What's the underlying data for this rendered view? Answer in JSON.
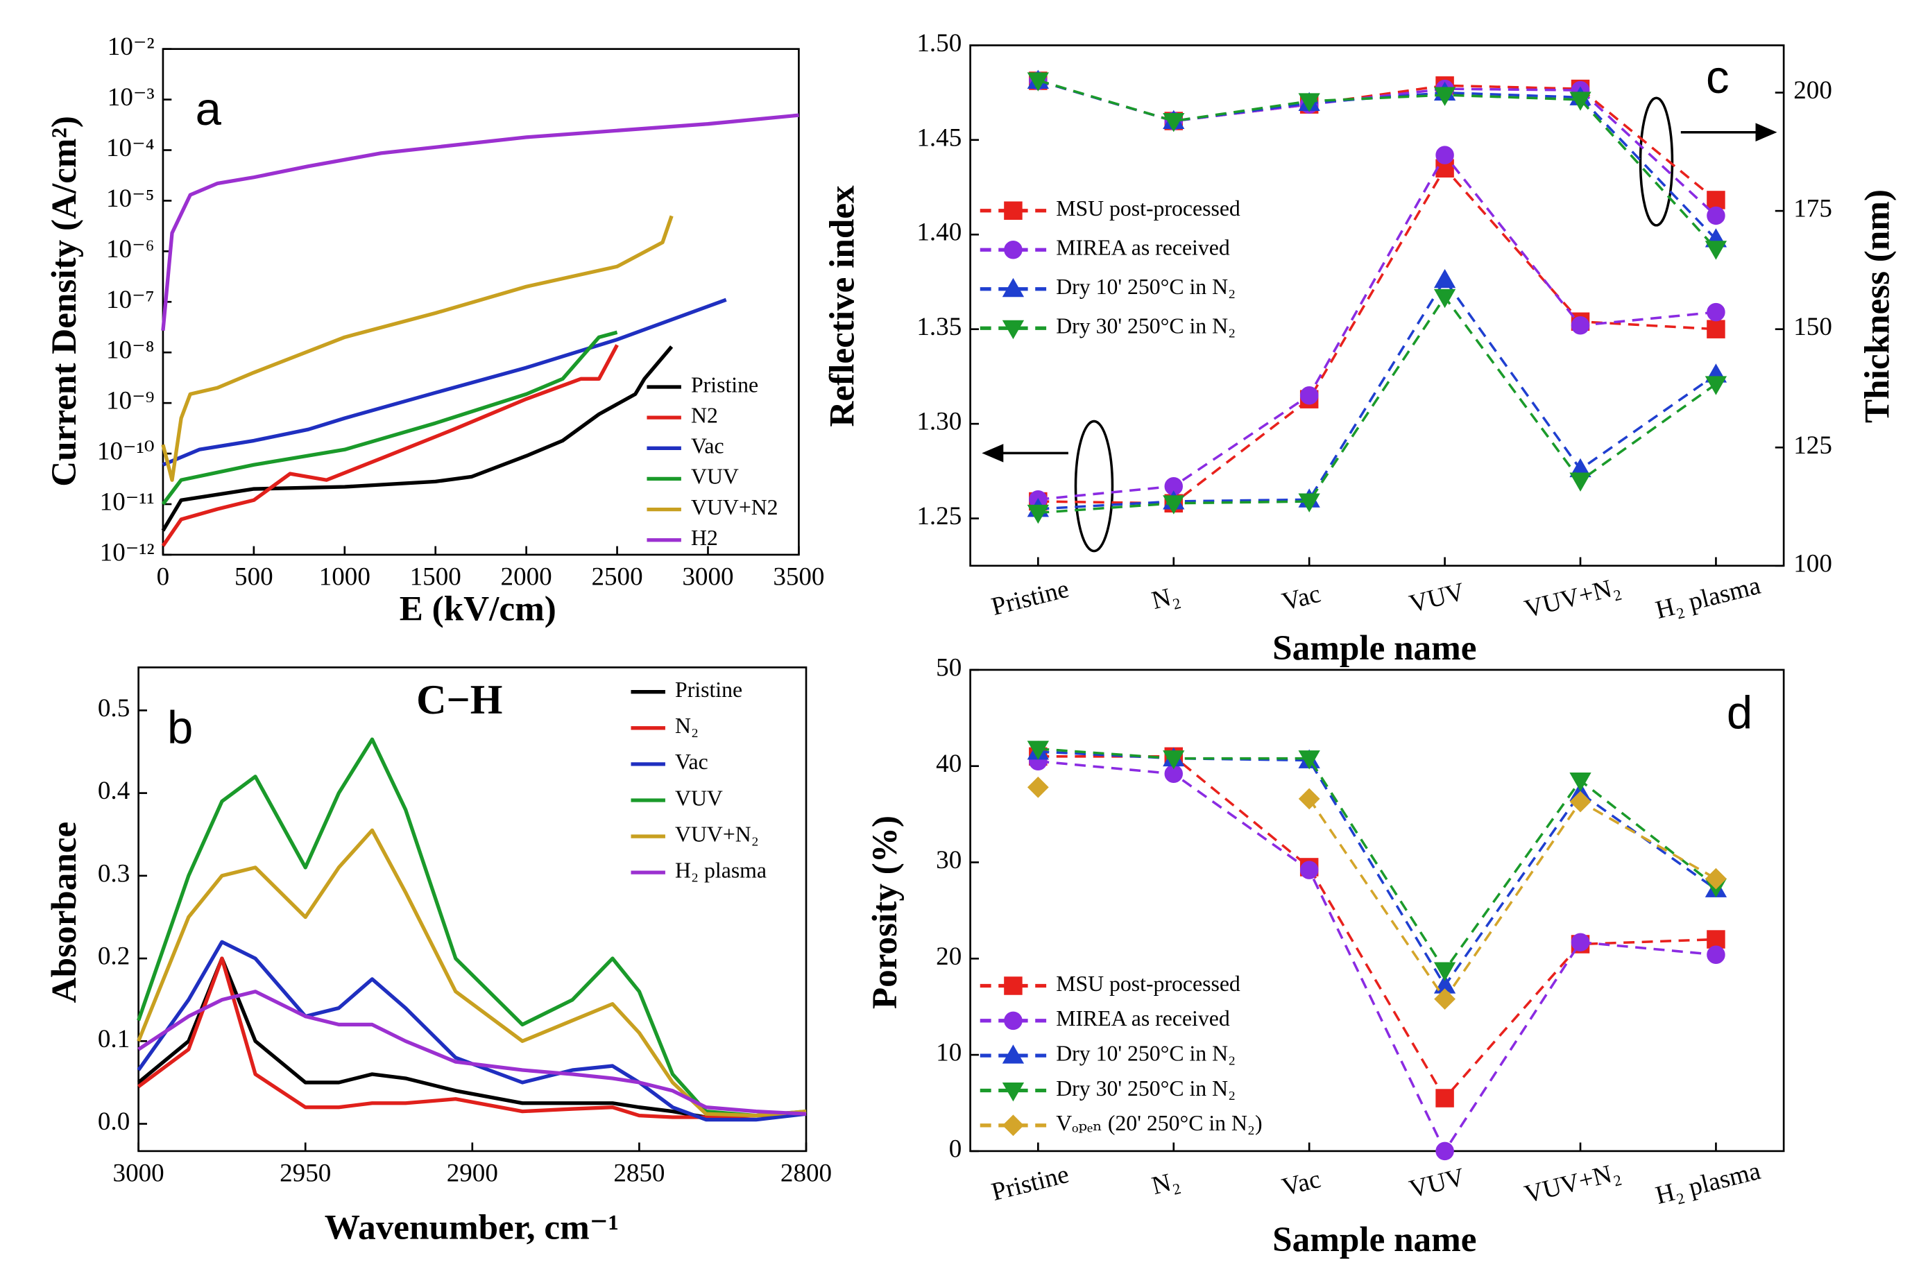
{
  "chart_data": [
    {
      "type": "line",
      "panel_label": "a",
      "x_label": "E (kV/cm)",
      "y_label": "Current Density (A/cm²)",
      "log_y": true,
      "xlim": [
        0,
        3500
      ],
      "xticks": [
        0,
        500,
        1000,
        1500,
        2000,
        2500,
        3000,
        3500
      ],
      "ylim": [
        1e-12,
        0.01
      ],
      "yticks": [
        {
          "value": 1e-12,
          "label": "10⁻¹²"
        },
        {
          "value": 1e-11,
          "label": "10⁻¹¹"
        },
        {
          "value": 1e-10,
          "label": "10⁻¹⁰"
        },
        {
          "value": 1e-09,
          "label": "10⁻⁹"
        },
        {
          "value": 1e-08,
          "label": "10⁻⁸"
        },
        {
          "value": 1e-07,
          "label": "10⁻⁷"
        },
        {
          "value": 1e-06,
          "label": "10⁻⁶"
        },
        {
          "value": 1e-05,
          "label": "10⁻⁵"
        },
        {
          "value": 0.0001,
          "label": "10⁻⁴"
        },
        {
          "value": 0.001,
          "label": "10⁻³"
        },
        {
          "value": 0.01,
          "label": "10⁻²"
        }
      ],
      "series": [
        {
          "name": "Pristine",
          "color": "#000000",
          "x": [
            0,
            100,
            500,
            1000,
            1500,
            1700,
            2000,
            2200,
            2400,
            2600,
            2650,
            2800
          ],
          "values": [
            3e-12,
            1.2e-11,
            2e-11,
            2.2e-11,
            2.8e-11,
            3.5e-11,
            9e-11,
            1.8e-10,
            6e-10,
            1.5e-09,
            3e-09,
            1.3e-08
          ]
        },
        {
          "name": "N2",
          "color": "#e0201b",
          "x": [
            0,
            100,
            300,
            500,
            700,
            900,
            1200,
            1600,
            2000,
            2300,
            2400,
            2500
          ],
          "values": [
            1.5e-12,
            5e-12,
            8e-12,
            1.2e-11,
            4e-11,
            3e-11,
            8e-11,
            3e-10,
            1.2e-09,
            3e-09,
            3e-09,
            1.4e-08
          ]
        },
        {
          "name": "Vac",
          "color": "#1f2fc0",
          "x": [
            0,
            200,
            500,
            800,
            1000,
            1500,
            2000,
            2500,
            3100
          ],
          "values": [
            6e-11,
            1.2e-10,
            1.8e-10,
            3e-10,
            5e-10,
            1.6e-09,
            5e-09,
            1.8e-08,
            1.1e-07
          ]
        },
        {
          "name": "VUV",
          "color": "#1a9a2a",
          "x": [
            0,
            100,
            500,
            1000,
            1500,
            2000,
            2200,
            2400,
            2500
          ],
          "values": [
            1e-11,
            3e-11,
            6e-11,
            1.2e-10,
            4e-10,
            1.5e-09,
            3e-09,
            2e-08,
            2.5e-08
          ]
        },
        {
          "name": "VUV+N2",
          "color": "#c8a020",
          "x": [
            0,
            50,
            100,
            150,
            300,
            500,
            1000,
            1500,
            2000,
            2500,
            2750,
            2800
          ],
          "values": [
            1.5e-10,
            3e-11,
            5e-10,
            1.5e-09,
            2e-09,
            4e-09,
            2e-08,
            6e-08,
            2e-07,
            5e-07,
            1.5e-06,
            5e-06
          ]
        },
        {
          "name": "H2",
          "color": "#9b30d0",
          "x": [
            0,
            50,
            150,
            300,
            500,
            800,
            1200,
            2000,
            3000,
            3500
          ],
          "values": [
            2.7e-08,
            2.3e-06,
            1.3e-05,
            2.2e-05,
            2.9e-05,
            4.8e-05,
            8.7e-05,
            0.00018,
            0.00033,
            0.00049
          ]
        }
      ]
    },
    {
      "type": "line",
      "panel_label": "b",
      "title": "C−H",
      "x_label": "Wavenumber, cm⁻¹",
      "y_label": "Absorbance",
      "xlim": [
        3000,
        2800
      ],
      "xticks": [
        3000,
        2950,
        2900,
        2850,
        2800
      ],
      "ylim": [
        -0.033,
        0.552
      ],
      "yticks": [
        {
          "value": 0,
          "label": "0.0"
        },
        0.1,
        0.2,
        0.3,
        0.4,
        0.5
      ],
      "x": [
        3000,
        2985,
        2975,
        2965,
        2950,
        2940,
        2930,
        2920,
        2905,
        2885,
        2870,
        2858,
        2850,
        2840,
        2830,
        2815,
        2800
      ],
      "series": [
        {
          "name": "Pristine",
          "color": "#000000",
          "values": [
            0.05,
            0.1,
            0.2,
            0.1,
            0.05,
            0.05,
            0.06,
            0.055,
            0.04,
            0.025,
            0.025,
            0.025,
            0.02,
            0.015,
            0.008,
            0.01,
            0.012
          ]
        },
        {
          "name": "N₂",
          "color": "#e0201b",
          "values": [
            0.045,
            0.09,
            0.2,
            0.06,
            0.02,
            0.02,
            0.025,
            0.025,
            0.03,
            0.015,
            0.018,
            0.02,
            0.01,
            0.008,
            0.008,
            0.01,
            0.012
          ]
        },
        {
          "name": "Vac",
          "color": "#1f2fc0",
          "values": [
            0.065,
            0.15,
            0.22,
            0.2,
            0.13,
            0.14,
            0.175,
            0.14,
            0.08,
            0.05,
            0.065,
            0.07,
            0.05,
            0.02,
            0.005,
            0.005,
            0.012
          ]
        },
        {
          "name": "VUV",
          "color": "#1a9a2a",
          "values": [
            0.125,
            0.3,
            0.39,
            0.42,
            0.31,
            0.4,
            0.465,
            0.38,
            0.2,
            0.12,
            0.15,
            0.2,
            0.16,
            0.06,
            0.015,
            0.01,
            0.015
          ]
        },
        {
          "name": "VUV+N₂",
          "color": "#c8a020",
          "values": [
            0.1,
            0.25,
            0.3,
            0.31,
            0.25,
            0.31,
            0.355,
            0.28,
            0.16,
            0.1,
            0.125,
            0.145,
            0.11,
            0.05,
            0.012,
            0.01,
            0.015
          ]
        },
        {
          "name": "H₂ plasma",
          "color": "#9b30d0",
          "values": [
            0.09,
            0.13,
            0.15,
            0.16,
            0.13,
            0.12,
            0.12,
            0.1,
            0.075,
            0.065,
            0.06,
            0.055,
            0.05,
            0.04,
            0.02,
            0.015,
            0.012
          ]
        }
      ]
    },
    {
      "type": "line",
      "panel_label": "c",
      "x_label": "Sample name",
      "y_label": "Reflective index",
      "y2_label": "Thickness (nm)",
      "line_style": "dashed",
      "categories": [
        "Pristine",
        "N₂",
        "Vac",
        "VUV",
        "VUV+N₂",
        "H₂ plasma"
      ],
      "ylim": [
        1.225,
        1.5
      ],
      "yticks": [
        1.25,
        {
          "value": 1.3,
          "label": "1.30"
        },
        1.35,
        {
          "value": 1.4,
          "label": "1.40"
        },
        1.45,
        {
          "value": 1.5,
          "label": "1.50"
        }
      ],
      "y2lim": [
        100,
        210
      ],
      "y2ticks": [
        100,
        125,
        150,
        175,
        200
      ],
      "series": [
        {
          "name": "MSU post-processed",
          "color": "#e8211c",
          "marker": "square",
          "values": [
            1.259,
            1.258,
            1.313,
            1.435,
            1.354,
            1.35
          ]
        },
        {
          "name": "MIREA as received",
          "color": "#8a2be2",
          "marker": "circle",
          "values": [
            1.26,
            1.267,
            1.315,
            1.442,
            1.352,
            1.359
          ]
        },
        {
          "name": "Dry 10' 250°C in N₂",
          "color": "#1f3fd0",
          "marker": "triangle-up",
          "values": [
            1.255,
            1.259,
            1.26,
            1.376,
            1.276,
            1.326
          ]
        },
        {
          "name": "Dry 30' 250°C in N₂",
          "color": "#1a9a2a",
          "marker": "triangle-down",
          "values": [
            1.253,
            1.258,
            1.259,
            1.367,
            1.27,
            1.321
          ]
        },
        {
          "color": "#e8211c",
          "marker": "square",
          "axis": "y2",
          "values": [
            202.5,
            194,
            197.5,
            201.5,
            200.8,
            177.3
          ]
        },
        {
          "color": "#8a2be2",
          "marker": "circle",
          "axis": "y2",
          "values": [
            202.5,
            194,
            197.5,
            200.8,
            200.5,
            174
          ]
        },
        {
          "color": "#1f3fd0",
          "marker": "triangle-up",
          "axis": "y2",
          "values": [
            202.5,
            194,
            197.8,
            200,
            199,
            169
          ]
        },
        {
          "color": "#1a9a2a",
          "marker": "triangle-down",
          "axis": "y2",
          "values": [
            202.6,
            194,
            198.2,
            199.5,
            198.5,
            167
          ]
        }
      ]
    },
    {
      "type": "line",
      "panel_label": "d",
      "x_label": "Sample name",
      "y_label": "Porosity (%)",
      "line_style": "dashed",
      "categories": [
        "Pristine",
        "N₂",
        "Vac",
        "VUV",
        "VUV+N₂",
        "H₂ plasma"
      ],
      "ylim": [
        0,
        50
      ],
      "yticks": [
        0,
        10,
        20,
        30,
        40,
        50
      ],
      "series": [
        {
          "name": "MSU post-processed",
          "color": "#e8211c",
          "marker": "square",
          "values": [
            41,
            41,
            29.5,
            5.5,
            21.5,
            22
          ]
        },
        {
          "name": "MIREA as received",
          "color": "#8a2be2",
          "marker": "circle",
          "values": [
            40.5,
            39.2,
            29.2,
            0,
            21.7,
            20.4
          ]
        },
        {
          "name": "Dry 10' 250°C in N₂",
          "color": "#1f3fd0",
          "marker": "triangle-up",
          "values": [
            41.5,
            40.8,
            40.6,
            17.2,
            37.2,
            27.2
          ]
        },
        {
          "name": "Dry 30' 250°C in N₂",
          "color": "#1a9a2a",
          "marker": "triangle-down",
          "values": [
            41.8,
            40.8,
            40.8,
            18.8,
            38.5,
            27.5
          ]
        },
        {
          "name": "Vₒₚₑₙ (20' 250°C in N₂)",
          "color": "#d4a52a",
          "marker": "diamond",
          "values": [
            37.8,
            null,
            36.6,
            15.8,
            36.3,
            28.3
          ]
        }
      ]
    }
  ]
}
